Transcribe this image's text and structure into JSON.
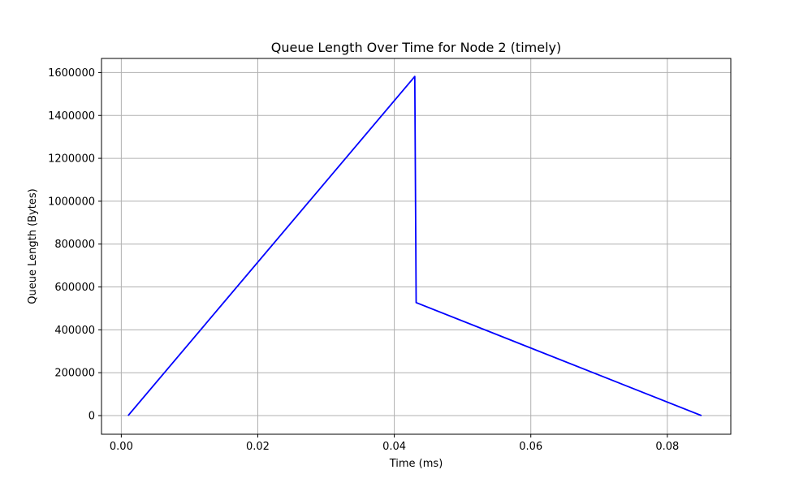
{
  "chart_data": {
    "type": "line",
    "title": "Queue Length Over Time for Node 2 (timely)",
    "xlabel": "Time (ms)",
    "ylabel": "Queue Length (Bytes)",
    "xlim": [
      -0.0029,
      0.0893
    ],
    "ylim": [
      -87000,
      1666000
    ],
    "xticks": [
      0.0,
      0.02,
      0.04,
      0.06,
      0.08
    ],
    "xtick_labels": [
      "0.00",
      "0.02",
      "0.04",
      "0.06",
      "0.08"
    ],
    "yticks": [
      0,
      200000,
      400000,
      600000,
      800000,
      1000000,
      1200000,
      1400000,
      1600000
    ],
    "ytick_labels": [
      "0",
      "200000",
      "400000",
      "600000",
      "800000",
      "1000000",
      "1200000",
      "1400000",
      "1600000"
    ],
    "grid": true,
    "series": [
      {
        "color": "#0000ff",
        "x": [
          0.001,
          0.043,
          0.0432,
          0.085
        ],
        "y": [
          0,
          1582000,
          527000,
          0
        ]
      }
    ]
  }
}
